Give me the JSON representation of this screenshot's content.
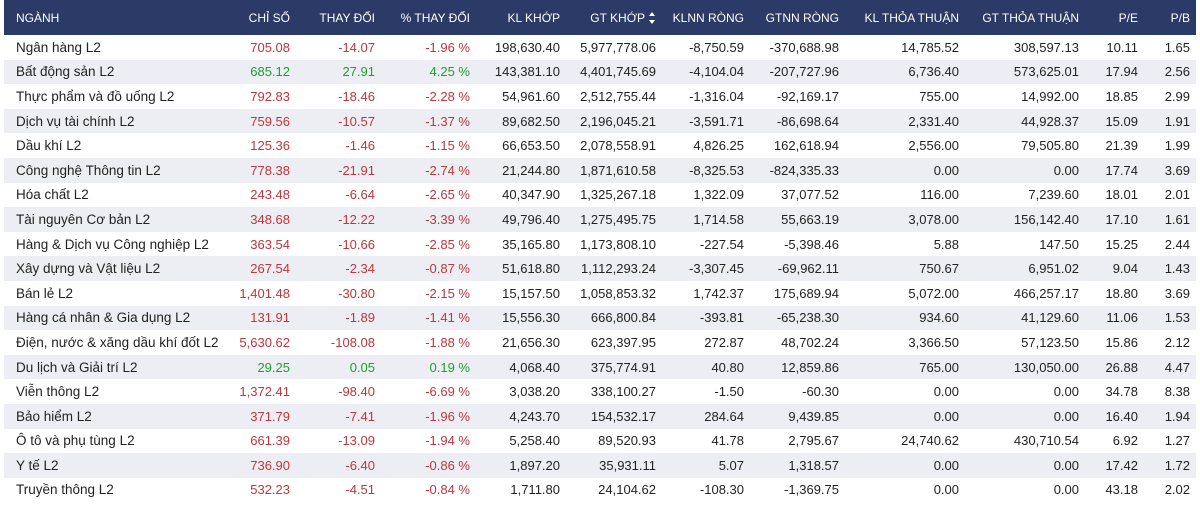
{
  "colors": {
    "header_bg": "#2b3a66",
    "negative": "#c3343b",
    "positive": "#1d9e2f",
    "row_alt": "#edeef3"
  },
  "table": {
    "headers": [
      "NGÀNH",
      "CHỈ SỐ",
      "THAY ĐỔI",
      "% THAY ĐỔI",
      "KL KHỚP",
      "GT KHỚP",
      "KLNN RÒNG",
      "GTNN RÒNG",
      "KL THỎA THUẬN",
      "GT THỎA THUẬN",
      "P/E",
      "P/B"
    ],
    "sort_icon": "sort-icon",
    "rows": [
      {
        "name": "Ngân hàng L2",
        "index": "705.08",
        "change": "-14.07",
        "pct": "-1.96 %",
        "kl_khop": "198,630.40",
        "gt_khop": "5,977,778.06",
        "klnn": "-8,750.59",
        "gtnn": "-370,688.98",
        "kl_tt": "14,785.52",
        "gt_tt": "308,597.13",
        "pe": "10.11",
        "pb": "1.65",
        "dir": "neg"
      },
      {
        "name": "Bất động sản L2",
        "index": "685.12",
        "change": "27.91",
        "pct": "4.25 %",
        "kl_khop": "143,381.10",
        "gt_khop": "4,401,745.69",
        "klnn": "-4,104.04",
        "gtnn": "-207,727.96",
        "kl_tt": "6,736.40",
        "gt_tt": "573,625.01",
        "pe": "17.94",
        "pb": "2.56",
        "dir": "pos"
      },
      {
        "name": "Thực phẩm và đồ uống L2",
        "index": "792.83",
        "change": "-18.46",
        "pct": "-2.28 %",
        "kl_khop": "54,961.60",
        "gt_khop": "2,512,755.44",
        "klnn": "-1,316.04",
        "gtnn": "-92,169.17",
        "kl_tt": "755.00",
        "gt_tt": "14,992.00",
        "pe": "18.85",
        "pb": "2.99",
        "dir": "neg"
      },
      {
        "name": "Dịch vụ tài chính L2",
        "index": "759.56",
        "change": "-10.57",
        "pct": "-1.37 %",
        "kl_khop": "89,682.50",
        "gt_khop": "2,196,045.21",
        "klnn": "-3,591.71",
        "gtnn": "-86,698.64",
        "kl_tt": "2,331.40",
        "gt_tt": "44,928.37",
        "pe": "15.09",
        "pb": "1.91",
        "dir": "neg"
      },
      {
        "name": "Dầu khí L2",
        "index": "125.36",
        "change": "-1.46",
        "pct": "-1.15 %",
        "kl_khop": "66,653.50",
        "gt_khop": "2,078,558.91",
        "klnn": "4,826.25",
        "gtnn": "162,618.94",
        "kl_tt": "2,556.00",
        "gt_tt": "79,505.80",
        "pe": "21.39",
        "pb": "1.99",
        "dir": "neg"
      },
      {
        "name": "Công nghệ Thông tin L2",
        "index": "778.38",
        "change": "-21.91",
        "pct": "-2.74 %",
        "kl_khop": "21,244.80",
        "gt_khop": "1,871,610.58",
        "klnn": "-8,325.53",
        "gtnn": "-824,335.33",
        "kl_tt": "0.00",
        "gt_tt": "0.00",
        "pe": "17.74",
        "pb": "3.69",
        "dir": "neg"
      },
      {
        "name": "Hóa chất L2",
        "index": "243.48",
        "change": "-6.64",
        "pct": "-2.65 %",
        "kl_khop": "40,347.90",
        "gt_khop": "1,325,267.18",
        "klnn": "1,322.09",
        "gtnn": "37,077.52",
        "kl_tt": "116.00",
        "gt_tt": "7,239.60",
        "pe": "18.01",
        "pb": "2.01",
        "dir": "neg"
      },
      {
        "name": "Tài nguyên Cơ bản L2",
        "index": "348.68",
        "change": "-12.22",
        "pct": "-3.39 %",
        "kl_khop": "49,796.40",
        "gt_khop": "1,275,495.75",
        "klnn": "1,714.58",
        "gtnn": "55,663.19",
        "kl_tt": "3,078.00",
        "gt_tt": "156,142.40",
        "pe": "17.10",
        "pb": "1.61",
        "dir": "neg"
      },
      {
        "name": "Hàng & Dịch vụ Công nghiệp L2",
        "index": "363.54",
        "change": "-10.66",
        "pct": "-2.85 %",
        "kl_khop": "35,165.80",
        "gt_khop": "1,173,808.10",
        "klnn": "-227.54",
        "gtnn": "-5,398.46",
        "kl_tt": "5.88",
        "gt_tt": "147.50",
        "pe": "15.25",
        "pb": "2.44",
        "dir": "neg"
      },
      {
        "name": "Xây dựng và Vật liệu L2",
        "index": "267.54",
        "change": "-2.34",
        "pct": "-0.87 %",
        "kl_khop": "51,618.80",
        "gt_khop": "1,112,293.24",
        "klnn": "-3,307.45",
        "gtnn": "-69,962.11",
        "kl_tt": "750.67",
        "gt_tt": "6,951.02",
        "pe": "9.04",
        "pb": "1.43",
        "dir": "neg"
      },
      {
        "name": "Bán lẻ L2",
        "index": "1,401.48",
        "change": "-30.80",
        "pct": "-2.15 %",
        "kl_khop": "15,157.50",
        "gt_khop": "1,058,853.32",
        "klnn": "1,742.37",
        "gtnn": "175,689.94",
        "kl_tt": "5,072.00",
        "gt_tt": "466,257.17",
        "pe": "18.80",
        "pb": "3.69",
        "dir": "neg"
      },
      {
        "name": "Hàng cá nhân & Gia dụng L2",
        "index": "131.91",
        "change": "-1.89",
        "pct": "-1.41 %",
        "kl_khop": "15,556.30",
        "gt_khop": "666,800.84",
        "klnn": "-393.81",
        "gtnn": "-65,238.30",
        "kl_tt": "934.60",
        "gt_tt": "41,129.60",
        "pe": "11.06",
        "pb": "1.53",
        "dir": "neg"
      },
      {
        "name": "Điện, nước & xăng dầu khí đốt L2",
        "index": "5,630.62",
        "change": "-108.08",
        "pct": "-1.88 %",
        "kl_khop": "21,656.30",
        "gt_khop": "623,397.95",
        "klnn": "272.87",
        "gtnn": "48,702.24",
        "kl_tt": "3,366.50",
        "gt_tt": "57,123.50",
        "pe": "15.86",
        "pb": "2.12",
        "dir": "neg"
      },
      {
        "name": "Du lịch và Giải trí L2",
        "index": "29.25",
        "change": "0.05",
        "pct": "0.19 %",
        "kl_khop": "4,068.40",
        "gt_khop": "375,774.91",
        "klnn": "40.80",
        "gtnn": "12,859.86",
        "kl_tt": "765.00",
        "gt_tt": "130,050.00",
        "pe": "26.88",
        "pb": "4.47",
        "dir": "pos"
      },
      {
        "name": "Viễn thông L2",
        "index": "1,372.41",
        "change": "-98.40",
        "pct": "-6.69 %",
        "kl_khop": "3,038.20",
        "gt_khop": "338,100.27",
        "klnn": "-1.50",
        "gtnn": "-60.30",
        "kl_tt": "0.00",
        "gt_tt": "0.00",
        "pe": "34.78",
        "pb": "8.38",
        "dir": "neg"
      },
      {
        "name": "Bảo hiểm L2",
        "index": "371.79",
        "change": "-7.41",
        "pct": "-1.96 %",
        "kl_khop": "4,243.70",
        "gt_khop": "154,532.17",
        "klnn": "284.64",
        "gtnn": "9,439.85",
        "kl_tt": "0.00",
        "gt_tt": "0.00",
        "pe": "16.40",
        "pb": "1.94",
        "dir": "neg"
      },
      {
        "name": "Ô tô và phụ tùng L2",
        "index": "661.39",
        "change": "-13.09",
        "pct": "-1.94 %",
        "kl_khop": "5,258.40",
        "gt_khop": "89,520.93",
        "klnn": "41.78",
        "gtnn": "2,795.67",
        "kl_tt": "24,740.62",
        "gt_tt": "430,710.54",
        "pe": "6.92",
        "pb": "1.27",
        "dir": "neg"
      },
      {
        "name": "Y tế L2",
        "index": "736.90",
        "change": "-6.40",
        "pct": "-0.86 %",
        "kl_khop": "1,897.20",
        "gt_khop": "35,931.11",
        "klnn": "5.07",
        "gtnn": "1,318.57",
        "kl_tt": "0.00",
        "gt_tt": "0.00",
        "pe": "17.42",
        "pb": "1.72",
        "dir": "neg"
      },
      {
        "name": "Truyền thông L2",
        "index": "532.23",
        "change": "-4.51",
        "pct": "-0.84 %",
        "kl_khop": "1,711.80",
        "gt_khop": "24,104.62",
        "klnn": "-108.30",
        "gtnn": "-1,369.75",
        "kl_tt": "0.00",
        "gt_tt": "0.00",
        "pe": "43.18",
        "pb": "2.02",
        "dir": "neg"
      }
    ]
  }
}
